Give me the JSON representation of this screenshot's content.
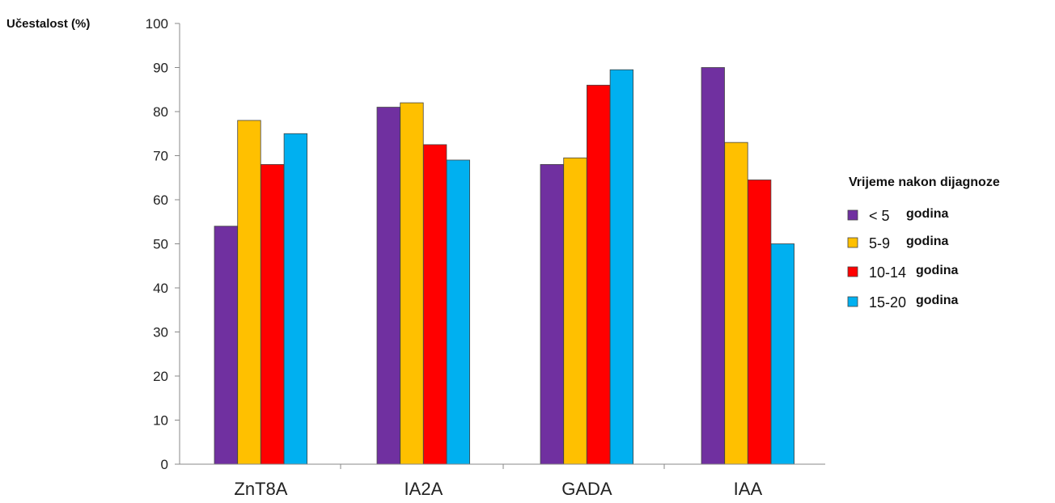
{
  "chart_data": {
    "type": "bar",
    "ylabel": "Učestalost (%)",
    "xlabel": "",
    "ylim": [
      0,
      100
    ],
    "yticks": [
      0,
      10,
      20,
      30,
      40,
      50,
      60,
      70,
      80,
      90,
      100
    ],
    "categories": [
      "ZnT8A",
      "IA2A",
      "GADA",
      "IAA"
    ],
    "legend": {
      "title": "Vrijeme nakon dijagnoze",
      "placement": "right"
    },
    "series": [
      {
        "name": "< 5 godina",
        "range": "< 5",
        "unit": "godina",
        "color": "#7030A0",
        "values": [
          54,
          81,
          68,
          90
        ]
      },
      {
        "name": "5-9 godina",
        "range": "5-9",
        "unit": "godina",
        "color": "#FFC000",
        "values": [
          78,
          82,
          69.5,
          73
        ]
      },
      {
        "name": "10-14 godina",
        "range": "10-14",
        "unit": "godina",
        "color": "#FF0000",
        "values": [
          68,
          72.5,
          86,
          64.5
        ]
      },
      {
        "name": "15-20 godina",
        "range": "15-20",
        "unit": "godina",
        "color": "#00B0F0",
        "values": [
          75,
          69,
          89.5,
          50
        ]
      }
    ]
  }
}
